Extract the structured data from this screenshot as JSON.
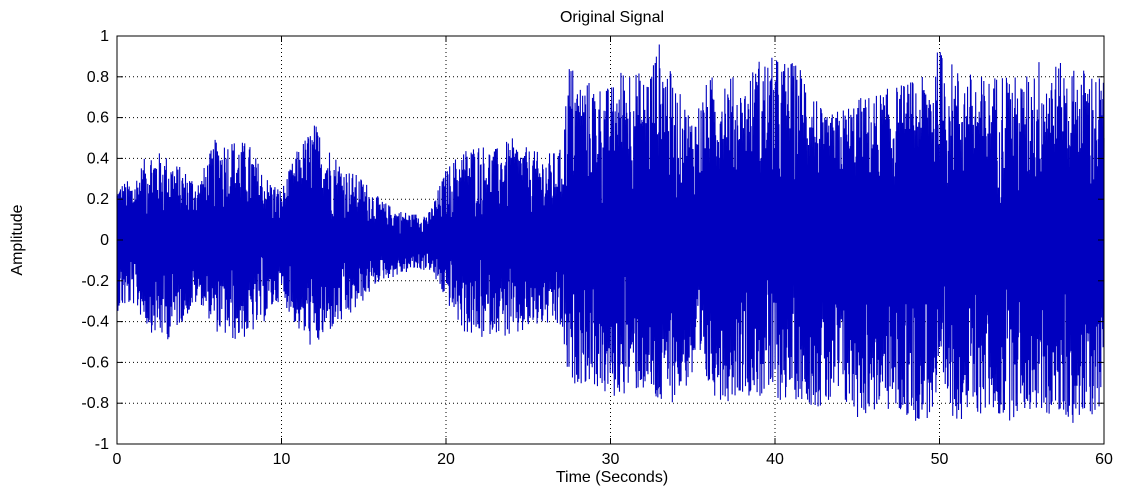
{
  "chart_data": {
    "type": "line",
    "title": "Original Signal",
    "xlabel": "Time (Seconds)",
    "ylabel": "Amplitude",
    "xlim": [
      0,
      60
    ],
    "ylim": [
      -1,
      1
    ],
    "xticks": [
      0,
      10,
      20,
      30,
      40,
      50,
      60
    ],
    "yticks": [
      -1,
      -0.8,
      -0.6,
      -0.4,
      -0.2,
      0,
      0.2,
      0.4,
      0.6,
      0.8,
      1
    ],
    "ytick_labels": [
      "-1",
      "-0.8",
      "-0.6",
      "-0.4",
      "-0.2",
      "0",
      "0.2",
      "0.4",
      "0.6",
      "0.8",
      "1"
    ],
    "grid": true,
    "grid_style": "dotted",
    "line_color": "#0000bf",
    "series": [
      {
        "envelope_time": [
          0,
          1,
          2,
          3,
          4,
          5,
          6,
          7,
          8,
          9,
          10,
          11,
          12,
          13,
          14,
          15,
          16,
          17,
          18,
          19,
          20,
          21,
          22,
          23,
          24,
          25,
          26,
          27,
          27.5,
          28,
          29,
          30,
          31,
          32,
          33,
          34,
          35,
          36,
          37,
          38,
          39,
          40,
          41,
          42,
          43,
          44,
          45,
          46,
          47,
          48,
          49,
          50,
          51,
          52,
          53,
          54,
          55,
          56,
          57,
          58,
          59,
          60
        ],
        "envelope_upper": [
          0.28,
          0.3,
          0.45,
          0.42,
          0.35,
          0.3,
          0.5,
          0.5,
          0.48,
          0.32,
          0.25,
          0.45,
          0.58,
          0.45,
          0.35,
          0.3,
          0.2,
          0.15,
          0.13,
          0.14,
          0.35,
          0.45,
          0.48,
          0.45,
          0.5,
          0.45,
          0.42,
          0.45,
          0.9,
          0.8,
          0.78,
          0.75,
          0.9,
          0.8,
          0.98,
          0.75,
          0.62,
          0.8,
          0.85,
          0.75,
          0.9,
          0.9,
          0.88,
          0.85,
          0.6,
          0.65,
          0.7,
          0.72,
          0.75,
          0.78,
          0.8,
          0.95,
          0.85,
          0.82,
          0.8,
          0.85,
          0.78,
          0.9,
          0.88,
          0.85,
          0.85,
          0.8
        ],
        "envelope_lower": [
          -0.35,
          -0.32,
          -0.45,
          -0.5,
          -0.4,
          -0.3,
          -0.45,
          -0.5,
          -0.48,
          -0.4,
          -0.28,
          -0.45,
          -0.55,
          -0.45,
          -0.4,
          -0.3,
          -0.2,
          -0.18,
          -0.15,
          -0.15,
          -0.3,
          -0.45,
          -0.5,
          -0.45,
          -0.5,
          -0.45,
          -0.42,
          -0.45,
          -0.75,
          -0.7,
          -0.72,
          -0.8,
          -0.75,
          -0.75,
          -0.85,
          -0.78,
          -0.7,
          -0.75,
          -0.8,
          -0.75,
          -0.78,
          -0.8,
          -0.78,
          -0.8,
          -0.85,
          -0.82,
          -0.88,
          -0.85,
          -0.85,
          -0.88,
          -0.9,
          -0.85,
          -0.88,
          -0.88,
          -0.85,
          -0.9,
          -0.85,
          -0.85,
          -0.88,
          -0.9,
          -0.9,
          -0.8
        ]
      }
    ]
  }
}
